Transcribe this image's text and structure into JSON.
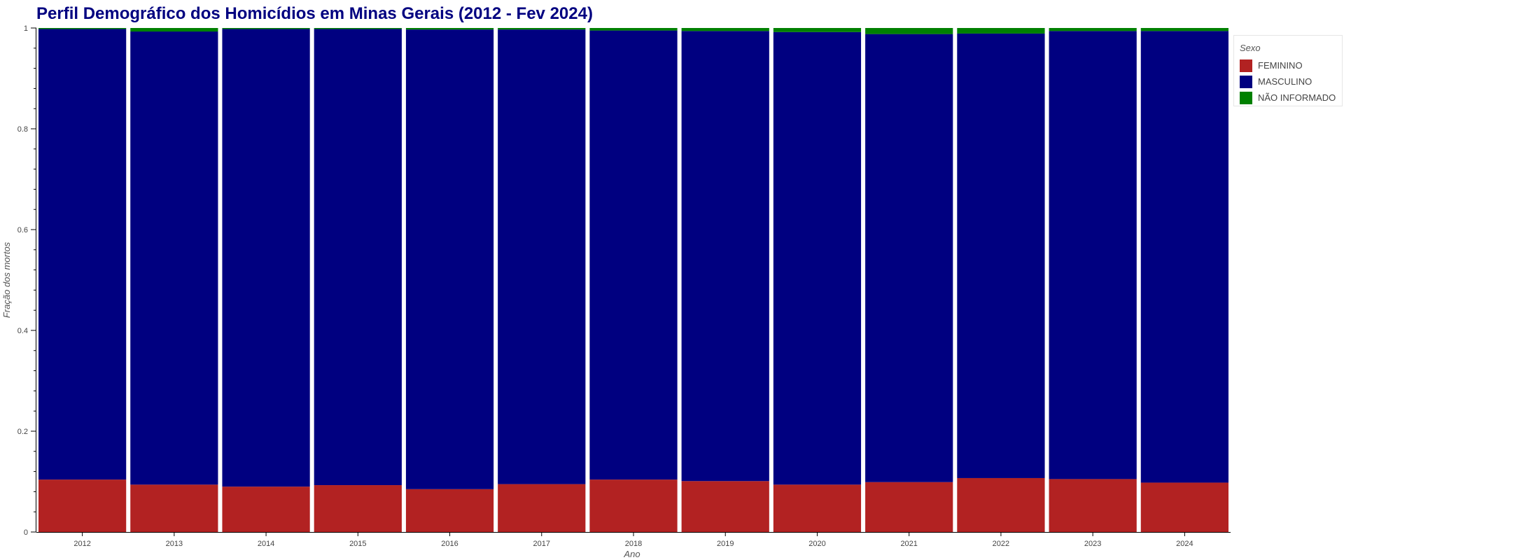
{
  "chart_data": {
    "type": "bar",
    "stacked": true,
    "title": "Perfil Demográfico dos Homicídios em Minas Gerais (2012 - Fev 2024)",
    "xlabel": "Ano",
    "ylabel": "Fração dos mortos",
    "ylim": [
      0,
      1
    ],
    "yticks": [
      "0",
      "0.2",
      "0.4",
      "0.6",
      "0.8",
      "1"
    ],
    "categories": [
      "2012",
      "2013",
      "2014",
      "2015",
      "2016",
      "2017",
      "2018",
      "2019",
      "2020",
      "2021",
      "2022",
      "2023",
      "2024"
    ],
    "legend": {
      "title": "Sexo",
      "placement": "top-right outside"
    },
    "series": [
      {
        "name": "FEMININO",
        "color": "#b22222",
        "values": [
          0.104,
          0.094,
          0.09,
          0.093,
          0.085,
          0.095,
          0.104,
          0.101,
          0.094,
          0.099,
          0.107,
          0.105,
          0.098
        ]
      },
      {
        "name": "MASCULINO",
        "color": "#000080",
        "values": [
          0.894,
          0.899,
          0.908,
          0.905,
          0.912,
          0.902,
          0.891,
          0.893,
          0.898,
          0.889,
          0.882,
          0.889,
          0.896
        ]
      },
      {
        "name": "NÃO INFORMADO",
        "color": "#008000",
        "values": [
          0.002,
          0.007,
          0.002,
          0.002,
          0.003,
          0.003,
          0.005,
          0.006,
          0.008,
          0.012,
          0.011,
          0.006,
          0.006
        ]
      }
    ]
  }
}
